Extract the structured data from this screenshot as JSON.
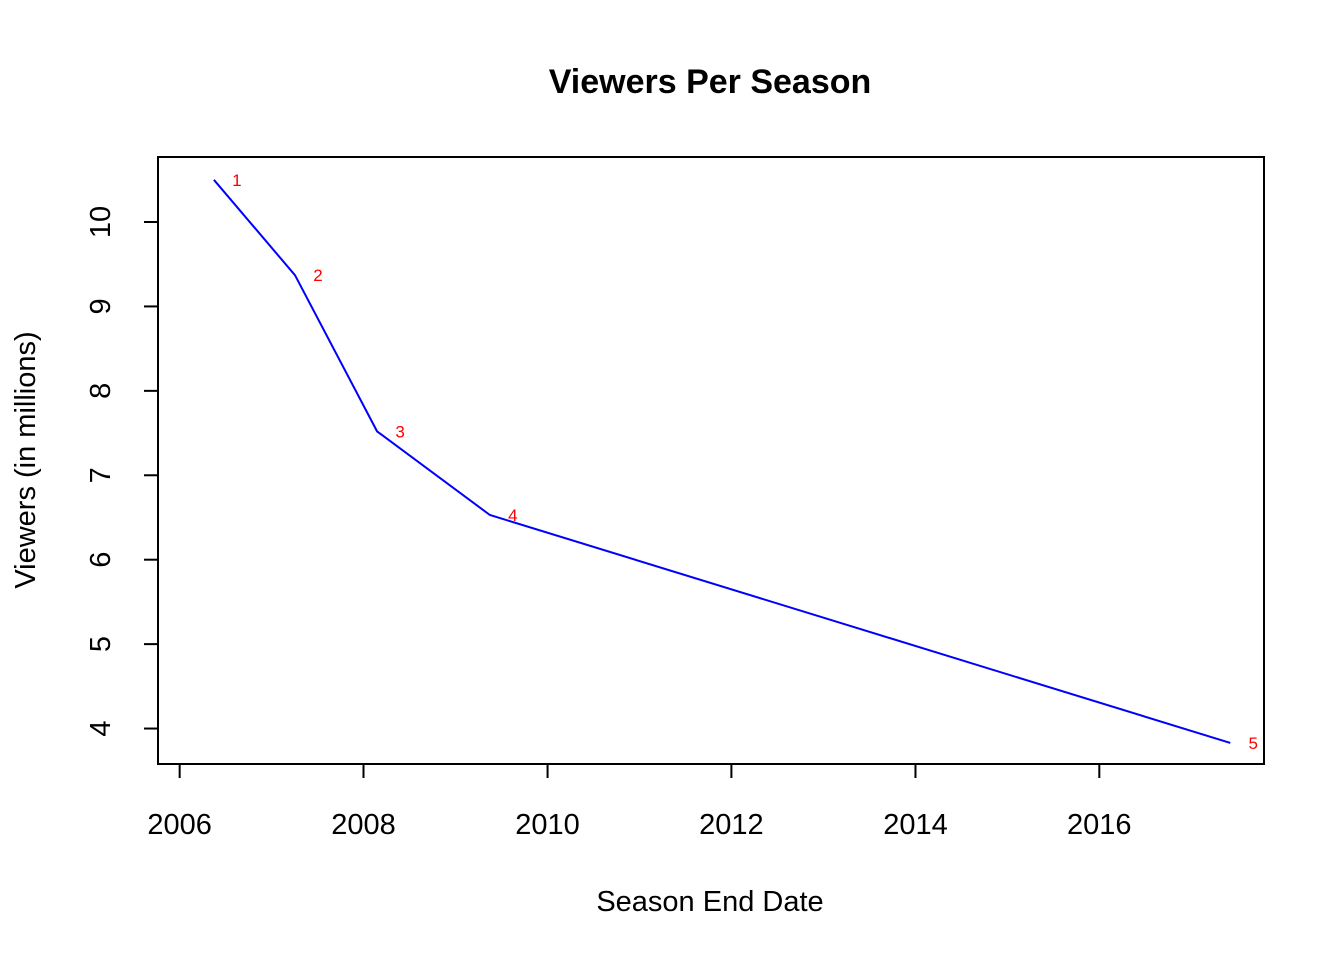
{
  "chart_data": {
    "type": "line",
    "title": "Viewers Per Season",
    "xlabel": "Season End Date",
    "ylabel": "Viewers (in millions)",
    "x_ticks": [
      "2006",
      "2008",
      "2010",
      "2012",
      "2014",
      "2016"
    ],
    "y_ticks": [
      "4",
      "5",
      "6",
      "7",
      "8",
      "9",
      "10"
    ],
    "xlim": [
      "2005-10-07",
      "2017-10-16"
    ],
    "ylim": [
      3.58,
      10.77
    ],
    "grid": false,
    "legend": "none",
    "series": [
      {
        "color": "#0000ff",
        "points": [
          {
            "label": "1",
            "date": "2006-05-17",
            "value": 10.5
          },
          {
            "label": "2",
            "date": "2007-04-04",
            "value": 9.37
          },
          {
            "label": "3",
            "date": "2008-02-24",
            "value": 7.52
          },
          {
            "label": "4",
            "date": "2009-05-17",
            "value": 6.53
          },
          {
            "label": "5",
            "date": "2017-06-04",
            "value": 3.83
          }
        ]
      }
    ],
    "label_color": "#ff0000"
  }
}
